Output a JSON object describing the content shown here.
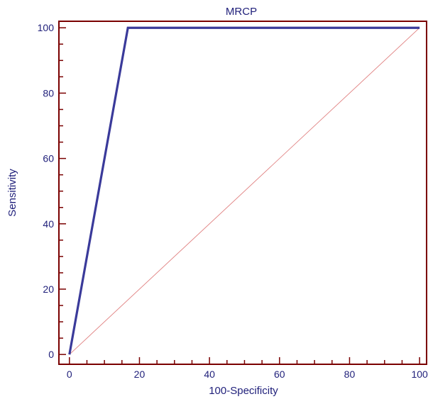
{
  "chart_data": {
    "type": "line",
    "title": "MRCP",
    "xlabel": "100-Specificity",
    "ylabel": "Sensitivity",
    "xlim": [
      -3,
      102
    ],
    "ylim": [
      -3,
      102
    ],
    "xticks": [
      0,
      20,
      40,
      60,
      80,
      100
    ],
    "yticks": [
      0,
      20,
      40,
      60,
      80,
      100
    ],
    "grid": false,
    "series": [
      {
        "x": [
          0,
          16.7,
          100
        ],
        "y": [
          0,
          100,
          100
        ],
        "color": "#3a3a9a"
      },
      {
        "x": [
          0,
          100
        ],
        "y": [
          0,
          100
        ],
        "color": "#e08080"
      }
    ],
    "colors": {
      "frame": "#7a0000",
      "text": "#1f1f7a"
    }
  }
}
